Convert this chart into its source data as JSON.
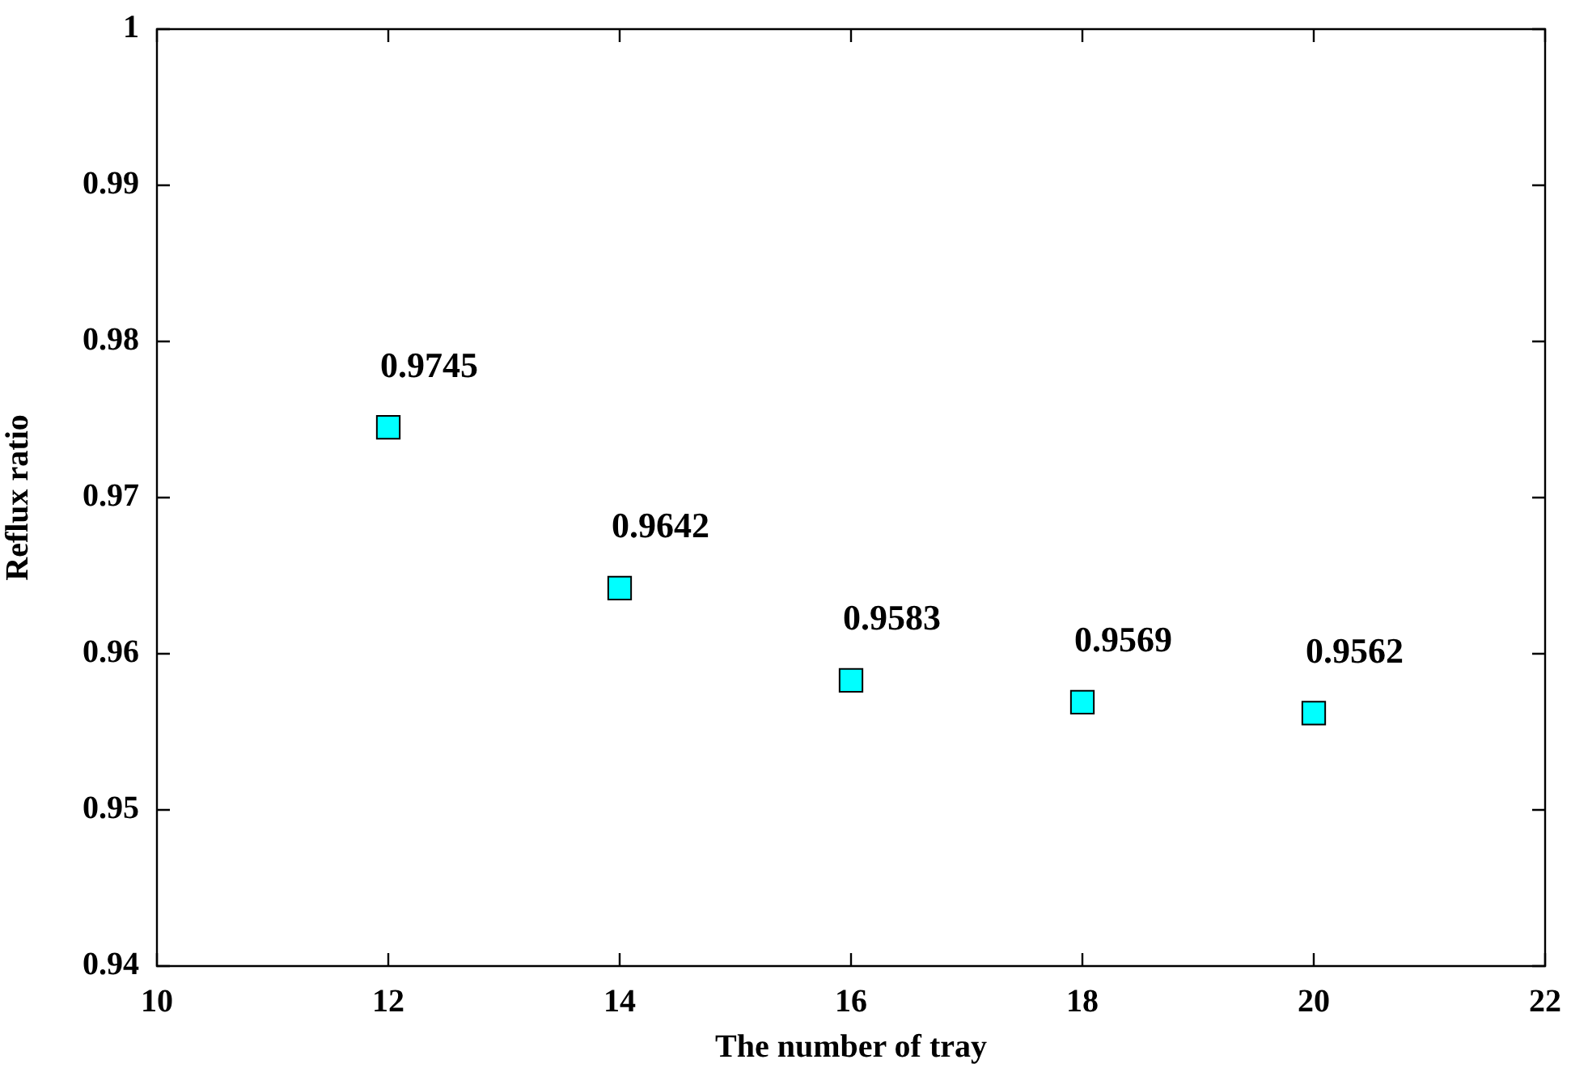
{
  "chart_data": {
    "type": "scatter",
    "xlabel": "The number of tray",
    "ylabel": "Reflux ratio",
    "x": [
      12,
      14,
      16,
      18,
      20
    ],
    "values": [
      0.9745,
      0.9642,
      0.9583,
      0.9569,
      0.9562
    ],
    "color": "#00ffff",
    "marker": "square",
    "data_labels": true,
    "xlim": [
      10,
      22
    ],
    "xticks": [
      10,
      12,
      14,
      16,
      18,
      20,
      22
    ],
    "ylim": [
      0.94,
      1
    ],
    "yticks": [
      0.94,
      0.95,
      0.96,
      0.97,
      0.98,
      0.99,
      1
    ]
  }
}
